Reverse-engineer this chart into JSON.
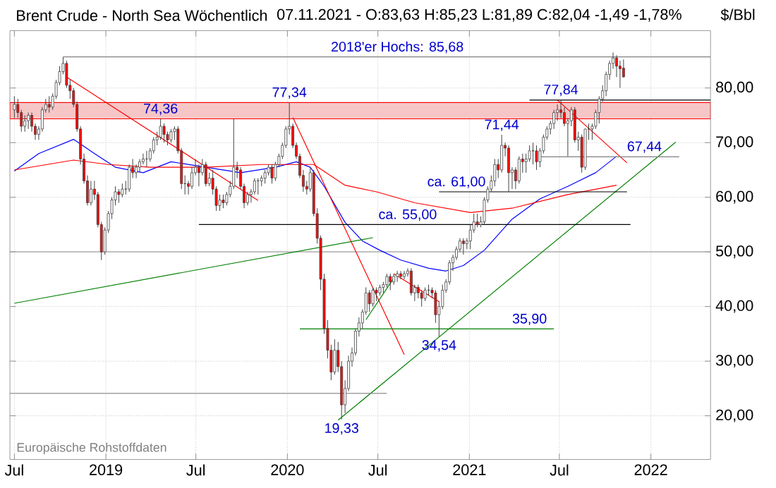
{
  "chart_data": {
    "type": "candlestick",
    "title": "Brent Crude - North Sea Wöchentlich",
    "subtitle": "07.11.2021 - O:83,63 H:85,23 L:81,89 C:82,04 -1,49 -1,78%",
    "ylabel": "$/Bbl",
    "x": [
      "2018-07-01",
      "2018-07-08",
      "2018-07-15",
      "2018-07-22",
      "2018-07-29",
      "2018-08-05",
      "2018-08-12",
      "2018-08-19",
      "2018-08-26",
      "2018-09-02",
      "2018-09-09",
      "2018-09-16",
      "2018-09-23",
      "2018-09-30",
      "2018-10-07",
      "2018-10-14",
      "2018-10-21",
      "2018-10-28",
      "2018-11-04",
      "2018-11-11",
      "2018-11-18",
      "2018-11-25",
      "2018-12-02",
      "2018-12-09",
      "2018-12-16",
      "2018-12-23",
      "2018-12-30",
      "2019-01-06",
      "2019-01-13",
      "2019-01-20",
      "2019-01-27",
      "2019-02-03",
      "2019-02-10",
      "2019-02-17",
      "2019-02-24",
      "2019-03-03",
      "2019-03-10",
      "2019-03-17",
      "2019-03-24",
      "2019-03-31",
      "2019-04-07",
      "2019-04-14",
      "2019-04-21",
      "2019-04-28",
      "2019-05-05",
      "2019-05-12",
      "2019-05-19",
      "2019-05-26",
      "2019-06-02",
      "2019-06-09",
      "2019-06-16",
      "2019-06-23",
      "2019-06-30",
      "2019-07-07",
      "2019-07-14",
      "2019-07-21",
      "2019-07-28",
      "2019-08-04",
      "2019-08-11",
      "2019-08-18",
      "2019-08-25",
      "2019-09-01",
      "2019-09-08",
      "2019-09-15",
      "2019-09-22",
      "2019-09-29",
      "2019-10-06",
      "2019-10-13",
      "2019-10-20",
      "2019-10-27",
      "2019-11-03",
      "2019-11-10",
      "2019-11-17",
      "2019-11-24",
      "2019-12-01",
      "2019-12-08",
      "2019-12-15",
      "2019-12-22",
      "2019-12-29",
      "2020-01-05",
      "2020-01-12",
      "2020-01-19",
      "2020-01-26",
      "2020-02-02",
      "2020-02-09",
      "2020-02-16",
      "2020-02-23",
      "2020-03-01",
      "2020-03-08",
      "2020-03-15",
      "2020-03-22",
      "2020-03-29",
      "2020-04-05",
      "2020-04-12",
      "2020-04-19",
      "2020-04-26",
      "2020-05-03",
      "2020-05-10",
      "2020-05-17",
      "2020-05-24",
      "2020-05-31",
      "2020-06-07",
      "2020-06-14",
      "2020-06-21",
      "2020-06-28",
      "2020-07-05",
      "2020-07-12",
      "2020-07-19",
      "2020-07-26",
      "2020-08-02",
      "2020-08-09",
      "2020-08-16",
      "2020-08-23",
      "2020-08-30",
      "2020-09-06",
      "2020-09-13",
      "2020-09-20",
      "2020-09-27",
      "2020-10-04",
      "2020-10-11",
      "2020-10-18",
      "2020-10-25",
      "2020-11-01",
      "2020-11-08",
      "2020-11-15",
      "2020-11-22",
      "2020-11-29",
      "2020-12-06",
      "2020-12-13",
      "2020-12-20",
      "2020-12-27",
      "2021-01-03",
      "2021-01-10",
      "2021-01-17",
      "2021-01-24",
      "2021-01-31",
      "2021-02-07",
      "2021-02-14",
      "2021-02-21",
      "2021-02-28",
      "2021-03-07",
      "2021-03-14",
      "2021-03-21",
      "2021-03-28",
      "2021-04-04",
      "2021-04-11",
      "2021-04-18",
      "2021-04-25",
      "2021-05-02",
      "2021-05-09",
      "2021-05-16",
      "2021-05-23",
      "2021-05-30",
      "2021-06-06",
      "2021-06-13",
      "2021-06-20",
      "2021-06-27",
      "2021-07-04",
      "2021-07-11",
      "2021-07-18",
      "2021-07-25",
      "2021-08-01",
      "2021-08-08",
      "2021-08-15",
      "2021-08-22",
      "2021-08-29",
      "2021-09-05",
      "2021-09-12",
      "2021-09-19",
      "2021-09-26",
      "2021-10-03",
      "2021-10-10",
      "2021-10-17",
      "2021-10-24",
      "2021-10-31",
      "2021-11-07"
    ],
    "ohlc": [
      [
        76,
        78.5,
        74.5,
        77
      ],
      [
        77,
        78,
        74.5,
        75.5
      ],
      [
        75.5,
        76,
        72,
        73
      ],
      [
        73,
        75,
        72,
        74
      ],
      [
        74,
        75.5,
        72.5,
        75
      ],
      [
        75,
        75.5,
        72,
        73
      ],
      [
        73,
        73.5,
        70.5,
        71.5
      ],
      [
        71.5,
        73,
        70.5,
        72.5
      ],
      [
        72.5,
        76.5,
        72,
        76
      ],
      [
        76,
        78,
        75.5,
        77
      ],
      [
        77,
        78.5,
        75.5,
        76.5
      ],
      [
        76.5,
        79,
        76,
        78.5
      ],
      [
        78.5,
        81.5,
        78,
        81
      ],
      [
        81,
        84,
        80.5,
        83
      ],
      [
        83,
        85.68,
        82.5,
        84.5
      ],
      [
        84.5,
        85,
        80,
        80.5
      ],
      [
        80.5,
        81.5,
        78,
        79.5
      ],
      [
        79.5,
        80,
        76.5,
        77
      ],
      [
        77,
        77.5,
        72,
        72.5
      ],
      [
        72.5,
        73,
        66,
        67
      ],
      [
        67,
        68,
        62.5,
        63
      ],
      [
        63,
        64,
        58.5,
        59
      ],
      [
        59,
        63,
        58.5,
        61.5
      ],
      [
        61.5,
        63,
        59.5,
        60.5
      ],
      [
        60.5,
        61,
        54.5,
        55
      ],
      [
        55,
        55.5,
        48.5,
        50
      ],
      [
        50,
        54.5,
        49.5,
        54
      ],
      [
        54,
        57.5,
        53.5,
        57
      ],
      [
        57,
        60,
        56,
        59.5
      ],
      [
        59.5,
        62,
        58.5,
        61
      ],
      [
        61,
        61.5,
        59,
        60.5
      ],
      [
        60.5,
        62.5,
        60,
        61.5
      ],
      [
        61.5,
        63,
        60.5,
        61.5
      ],
      [
        61.5,
        66,
        61,
        65.5
      ],
      [
        65.5,
        67,
        63.5,
        64.5
      ],
      [
        64.5,
        66,
        63.5,
        65.5
      ],
      [
        65.5,
        67,
        64.5,
        66.5
      ],
      [
        66.5,
        68,
        66,
        67
      ],
      [
        67,
        68.5,
        65.5,
        67
      ],
      [
        67,
        69,
        66.5,
        68.5
      ],
      [
        68.5,
        71,
        68,
        70.5
      ],
      [
        70.5,
        72,
        69.5,
        71
      ],
      [
        71,
        74.36,
        70.5,
        73
      ],
      [
        73,
        73.5,
        70,
        71.5
      ],
      [
        71.5,
        72,
        69.5,
        70.5
      ],
      [
        70.5,
        72.5,
        70,
        72
      ],
      [
        72,
        73,
        70.5,
        72.5
      ],
      [
        72.5,
        73,
        68,
        68.5
      ],
      [
        68.5,
        69,
        61.5,
        62.5
      ],
      [
        62.5,
        64,
        60.5,
        62.5
      ],
      [
        62.5,
        63,
        60.5,
        62
      ],
      [
        62,
        65.5,
        61.5,
        64.5
      ],
      [
        64.5,
        67,
        64,
        65.5
      ],
      [
        65.5,
        66,
        62,
        64.5
      ],
      [
        64.5,
        67,
        64,
        66
      ],
      [
        66,
        66.5,
        62,
        62.5
      ],
      [
        62.5,
        64.5,
        62,
        63.5
      ],
      [
        63.5,
        65,
        60.5,
        61.5
      ],
      [
        61.5,
        62,
        57.5,
        58.5
      ],
      [
        58.5,
        60.5,
        57.5,
        59.5
      ],
      [
        59.5,
        60.5,
        58,
        59
      ],
      [
        59,
        61,
        58.5,
        60.5
      ],
      [
        60.5,
        63,
        60,
        62
      ],
      [
        62,
        74.4,
        61.5,
        65.5
      ],
      [
        65.5,
        66.5,
        63.5,
        65
      ],
      [
        65,
        65.5,
        61.5,
        62
      ],
      [
        62,
        62.5,
        58,
        59
      ],
      [
        59,
        61,
        58.5,
        60.5
      ],
      [
        60.5,
        61.5,
        59,
        61
      ],
      [
        61,
        63.5,
        60.5,
        63
      ],
      [
        63,
        63.5,
        60.5,
        63
      ],
      [
        63,
        64,
        62,
        63.5
      ],
      [
        63.5,
        65,
        62.5,
        64.5
      ],
      [
        64.5,
        66,
        64,
        65.5
      ],
      [
        65.5,
        66,
        62.5,
        63.5
      ],
      [
        63.5,
        66.5,
        63,
        66
      ],
      [
        66,
        68,
        65.5,
        67.5
      ],
      [
        67.5,
        70,
        67,
        69.5
      ],
      [
        69.5,
        73,
        69,
        72.5
      ],
      [
        72.5,
        77.34,
        71.5,
        73
      ],
      [
        73,
        73.5,
        69,
        69.5
      ],
      [
        69.5,
        70,
        67,
        67.5
      ],
      [
        67.5,
        68,
        63.5,
        64
      ],
      [
        64,
        65,
        61,
        62
      ],
      [
        62,
        63,
        60.5,
        61.5
      ],
      [
        61.5,
        65.5,
        61,
        64.5
      ],
      [
        64.5,
        65,
        56.5,
        57
      ],
      [
        57,
        58,
        51.5,
        52.5
      ],
      [
        52.5,
        53,
        43,
        45
      ],
      [
        45,
        46,
        35,
        36
      ],
      [
        36,
        37.5,
        30.5,
        32
      ],
      [
        32,
        33,
        26.5,
        28
      ],
      [
        28,
        34,
        27.5,
        32
      ],
      [
        32,
        33.5,
        28,
        29
      ],
      [
        29,
        30,
        19.33,
        22
      ],
      [
        22,
        26.5,
        20.5,
        25
      ],
      [
        25,
        31,
        24.5,
        30
      ],
      [
        30,
        32.5,
        29,
        31.5
      ],
      [
        31.5,
        36,
        31,
        35.5
      ],
      [
        35.5,
        38,
        34.5,
        37
      ],
      [
        37,
        39.5,
        36,
        39
      ],
      [
        39,
        43.5,
        38.5,
        42.5
      ],
      [
        42.5,
        43,
        39,
        40.5
      ],
      [
        40.5,
        43.5,
        40,
        43
      ],
      [
        43,
        43.5,
        41,
        42.5
      ],
      [
        42.5,
        44,
        42,
        43.5
      ],
      [
        43.5,
        44.5,
        42.5,
        44
      ],
      [
        44,
        46,
        43.5,
        45.5
      ],
      [
        45.5,
        46,
        43,
        44.5
      ],
      [
        44.5,
        46,
        44,
        45.5
      ],
      [
        45.5,
        46.5,
        44.5,
        46
      ],
      [
        46,
        46.5,
        45,
        45.5
      ],
      [
        45.5,
        46.5,
        45,
        46
      ],
      [
        46,
        47,
        45.5,
        46.5
      ],
      [
        46.5,
        47,
        42,
        42.5
      ],
      [
        42.5,
        44,
        41,
        43.5
      ],
      [
        43.5,
        44,
        41.5,
        42.5
      ],
      [
        42.5,
        43,
        40,
        41.5
      ],
      [
        41.5,
        43.5,
        41,
        43
      ],
      [
        43,
        44,
        42,
        43
      ],
      [
        43,
        43.5,
        41.5,
        42.5
      ],
      [
        42.5,
        43,
        37,
        38.5
      ],
      [
        38.5,
        41,
        34.54,
        40
      ],
      [
        40,
        44,
        39.5,
        43
      ],
      [
        43,
        45,
        42.5,
        44.5
      ],
      [
        44.5,
        48.5,
        44,
        48
      ],
      [
        48,
        49.5,
        46.5,
        49
      ],
      [
        49,
        51,
        48.5,
        50.5
      ],
      [
        50.5,
        52.5,
        50,
        52
      ],
      [
        52,
        52.5,
        49.5,
        51.5
      ],
      [
        51.5,
        52.5,
        50.5,
        52
      ],
      [
        52,
        55,
        50.5,
        54
      ],
      [
        54,
        57,
        53.5,
        55.5
      ],
      [
        55.5,
        57,
        54.5,
        55
      ],
      [
        55,
        56.5,
        54.5,
        55.5
      ],
      [
        55.5,
        60,
        55,
        59.5
      ],
      [
        59.5,
        62,
        59,
        61.5
      ],
      [
        61.5,
        64,
        61,
        63
      ],
      [
        63,
        67,
        62,
        66
      ],
      [
        66,
        67,
        63.5,
        65
      ],
      [
        65,
        71.44,
        64.5,
        69.5
      ],
      [
        69.5,
        70,
        67.5,
        69
      ],
      [
        69,
        69.5,
        61,
        64.5
      ],
      [
        64.5,
        65.5,
        61.5,
        65
      ],
      [
        65,
        65.5,
        61.5,
        63
      ],
      [
        63,
        67.5,
        62.5,
        67
      ],
      [
        67,
        68,
        64.5,
        66.5
      ],
      [
        66.5,
        68,
        64.5,
        67
      ],
      [
        67,
        69.5,
        66.5,
        68.5
      ],
      [
        68.5,
        70,
        66,
        68.5
      ],
      [
        68.5,
        69.5,
        65,
        66.5
      ],
      [
        66.5,
        69,
        65.5,
        68.5
      ],
      [
        68.5,
        71.5,
        68,
        71
      ],
      [
        71,
        73,
        70.5,
        72.5
      ],
      [
        72.5,
        74,
        71.5,
        73.5
      ],
      [
        73.5,
        76,
        72.5,
        75.5
      ],
      [
        75.5,
        77,
        74,
        76
      ],
      [
        76,
        77.84,
        74.5,
        75.5
      ],
      [
        75.5,
        76.5,
        73,
        73.5
      ],
      [
        73.5,
        74.5,
        67.5,
        74
      ],
      [
        74,
        76.5,
        73,
        76
      ],
      [
        76,
        76.5,
        70,
        70.5
      ],
      [
        70.5,
        72,
        68.5,
        71
      ],
      [
        71,
        71.5,
        64.5,
        65.5
      ],
      [
        65.5,
        72.5,
        65,
        72.5
      ],
      [
        72.5,
        73.5,
        70.5,
        72.5
      ],
      [
        72.5,
        73.5,
        70.5,
        73
      ],
      [
        73,
        76,
        72.5,
        75.5
      ],
      [
        75.5,
        78.5,
        73.5,
        78
      ],
      [
        78,
        80.5,
        77.5,
        79.5
      ],
      [
        79.5,
        83,
        78.5,
        82.5
      ],
      [
        82.5,
        85,
        81.5,
        84.5
      ],
      [
        84.5,
        86.5,
        83.5,
        85.5
      ],
      [
        85.5,
        86,
        82,
        84
      ],
      [
        84,
        85,
        80,
        83.53
      ],
      [
        83.63,
        85.23,
        81.89,
        82.04
      ]
    ],
    "series": [
      {
        "type": "line",
        "color": "#0000ff",
        "x": [
          "2018-07-01",
          "2018-08-19",
          "2018-10-28",
          "2018-12-09",
          "2019-01-20",
          "2019-03-17",
          "2019-05-12",
          "2019-07-21",
          "2019-09-29",
          "2019-12-08",
          "2020-01-19",
          "2020-02-16",
          "2020-03-15",
          "2020-04-26",
          "2020-05-31",
          "2020-07-05",
          "2020-08-16",
          "2020-10-11",
          "2020-11-15",
          "2020-12-20",
          "2021-01-31",
          "2021-03-28",
          "2021-05-23",
          "2021-07-18",
          "2021-09-12",
          "2021-10-24"
        ],
        "values": [
          64.8,
          68,
          70.6,
          68,
          65.5,
          64.5,
          66.5,
          65.5,
          64.5,
          65.5,
          66.5,
          65.5,
          62,
          55.4,
          52,
          50.3,
          48.5,
          47,
          46.5,
          47.5,
          50.3,
          56,
          59.7,
          62,
          64.5,
          67.5
        ]
      },
      {
        "type": "line",
        "color": "#ff0000",
        "x": [
          "2018-07-01",
          "2018-10-28",
          "2019-01-06",
          "2019-03-31",
          "2019-07-21",
          "2019-11-10",
          "2020-02-23",
          "2020-04-26",
          "2020-06-28",
          "2020-09-13",
          "2021-01-03",
          "2021-03-28",
          "2021-07-18",
          "2021-10-24"
        ],
        "values": [
          65,
          66.8,
          66,
          65.5,
          65.5,
          66,
          66,
          62.2,
          61,
          59,
          57.2,
          58,
          60.5,
          62.2
        ]
      },
      {
        "type": "line",
        "color": "#ff0000",
        "x": [
          "2018-10-14",
          "2019-11-03"
        ],
        "values": [
          82,
          59.4
        ]
      },
      {
        "type": "line",
        "color": "#ff0000",
        "x": [
          "2020-01-12",
          "2020-08-23"
        ],
        "values": [
          74.6,
          31.2
        ]
      },
      {
        "type": "line",
        "color": "#ff0000",
        "x": [
          "2020-08-02",
          "2020-11-01"
        ],
        "values": [
          46,
          40.9
        ]
      },
      {
        "type": "line",
        "color": "#ff0000",
        "x": [
          "2021-06-27",
          "2021-11-14"
        ],
        "values": [
          77.8,
          66.3
        ]
      },
      {
        "type": "line",
        "color": "#008000",
        "x": [
          "2018-07-01",
          "2020-06-21"
        ],
        "values": [
          40.6,
          52.6
        ]
      },
      {
        "type": "line",
        "color": "#008000",
        "x": [
          "2020-04-12",
          "2022-02-20"
        ],
        "values": [
          19.2,
          70.1
        ]
      },
      {
        "type": "line",
        "color": "#008000",
        "x": [
          "2020-06-07",
          "2020-08-02"
        ],
        "values": [
          37.6,
          45.2
        ]
      },
      {
        "type": "line",
        "color": "#808080",
        "x": [
          "2018-10-07",
          "2022-05-01"
        ],
        "values": [
          85.7,
          85.7
        ]
      },
      {
        "type": "line",
        "color": "#808080",
        "x": [
          "2021-05-23",
          "2022-02-27"
        ],
        "values": [
          67.4,
          67.4
        ]
      },
      {
        "type": "line",
        "color": "#808080",
        "x": [
          "2018-06-22",
          "2020-07-19"
        ],
        "values": [
          24.1,
          24.1
        ]
      },
      {
        "type": "line",
        "color": "#000000",
        "x": [
          "2021-05-02",
          "2022-05-01"
        ],
        "values": [
          77.8,
          77.8
        ]
      },
      {
        "type": "line",
        "color": "#000000",
        "x": [
          "2019-07-07",
          "2021-11-21"
        ],
        "values": [
          55,
          55
        ]
      },
      {
        "type": "line",
        "color": "#000000",
        "x": [
          "2020-11-01",
          "2021-11-14"
        ],
        "values": [
          61,
          61
        ]
      },
      {
        "type": "line",
        "color": "#008000",
        "x": [
          "2020-01-26",
          "2021-06-20"
        ],
        "values": [
          35.9,
          35.9
        ]
      }
    ],
    "bands": [
      {
        "axis": "y",
        "from": 74.36,
        "to": 77.34,
        "color": "#f6c6c6"
      }
    ],
    "ref_lines": [
      {
        "axis": "y",
        "value": 50,
        "color": "#a0a0a0"
      }
    ],
    "annotations": [
      {
        "text": "2018'er Hochs: 85,68",
        "x": "2020-08-09",
        "y": 85.68
      },
      {
        "text": "74,36",
        "x": "2019-04-21",
        "y": 74.36
      },
      {
        "text": "77,34",
        "x": "2020-01-05",
        "y": 77.34
      },
      {
        "text": "19,33",
        "x": "2020-04-19",
        "y": 19.33
      },
      {
        "text": "34,54",
        "x": "2020-11-01",
        "y": 34.54
      },
      {
        "text": "71,44",
        "x": "2021-03-07",
        "y": 71.44
      },
      {
        "text": "77,84",
        "x": "2021-07-04",
        "y": 77.84
      },
      {
        "text": "67,44",
        "x": "2021-12-19",
        "y": 67.44
      },
      {
        "text": "ca. 61,00",
        "x": "2020-12-06",
        "y": 61
      },
      {
        "text": "ca. 55,00",
        "x": "2020-08-30",
        "y": 55
      },
      {
        "text": "35,90",
        "x": "2021-05-02",
        "y": 35.9
      },
      "Europäische Rohstoffdaten"
    ],
    "xlim": [
      "2018-06-22",
      "2022-05-01"
    ],
    "ylim": [
      12,
      90.5
    ],
    "xticks": [
      {
        "value": "2018-07-01",
        "label": "Jul"
      },
      {
        "value": "2019-01-01",
        "label": "2019"
      },
      {
        "value": "2019-07-01",
        "label": "Jul"
      },
      {
        "value": "2020-01-01",
        "label": "2020"
      },
      {
        "value": "2020-07-01",
        "label": "Jul"
      },
      {
        "value": "2021-01-01",
        "label": "2021"
      },
      {
        "value": "2021-07-01",
        "label": "Jul"
      },
      {
        "value": "2022-01-01",
        "label": "2022"
      }
    ],
    "yticks": [
      {
        "value": 20,
        "label": "20,00"
      },
      {
        "value": 30,
        "label": "30,00"
      },
      {
        "value": 40,
        "label": "40,00"
      },
      {
        "value": 50,
        "label": "50,00"
      },
      {
        "value": 60,
        "label": "60,00"
      },
      {
        "value": 70,
        "label": "70,00"
      },
      {
        "value": 80,
        "label": "80,00"
      }
    ],
    "grid": true
  }
}
